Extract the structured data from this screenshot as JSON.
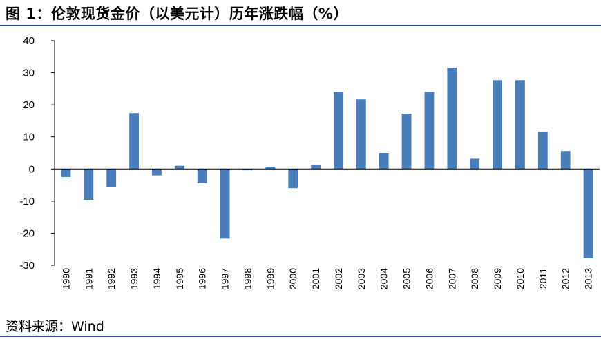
{
  "figure": {
    "title": "图 1：伦敦现货金价（以美元计）历年涨跌幅（%）",
    "source": "资料来源：Wind"
  },
  "chart_data": {
    "type": "bar",
    "categories": [
      "1990",
      "1991",
      "1992",
      "1993",
      "1994",
      "1995",
      "1996",
      "1997",
      "1998",
      "1999",
      "2000",
      "2001",
      "2002",
      "2003",
      "2004",
      "2005",
      "2006",
      "2007",
      "2008",
      "2009",
      "2010",
      "2011",
      "2012",
      "2013"
    ],
    "values": [
      -2.5,
      -9.6,
      -5.7,
      17.4,
      -2.0,
      1.0,
      -4.4,
      -21.7,
      -0.4,
      0.7,
      -6.0,
      1.3,
      24.0,
      21.7,
      5.0,
      17.2,
      24.0,
      31.6,
      3.2,
      27.7,
      27.7,
      11.6,
      5.6,
      -27.8
    ],
    "ylim": [
      -30,
      40
    ],
    "yticks": [
      -30,
      -20,
      -10,
      0,
      10,
      20,
      30,
      40
    ],
    "bar_color": "#4a7ebb",
    "grid": false,
    "legend": false
  }
}
